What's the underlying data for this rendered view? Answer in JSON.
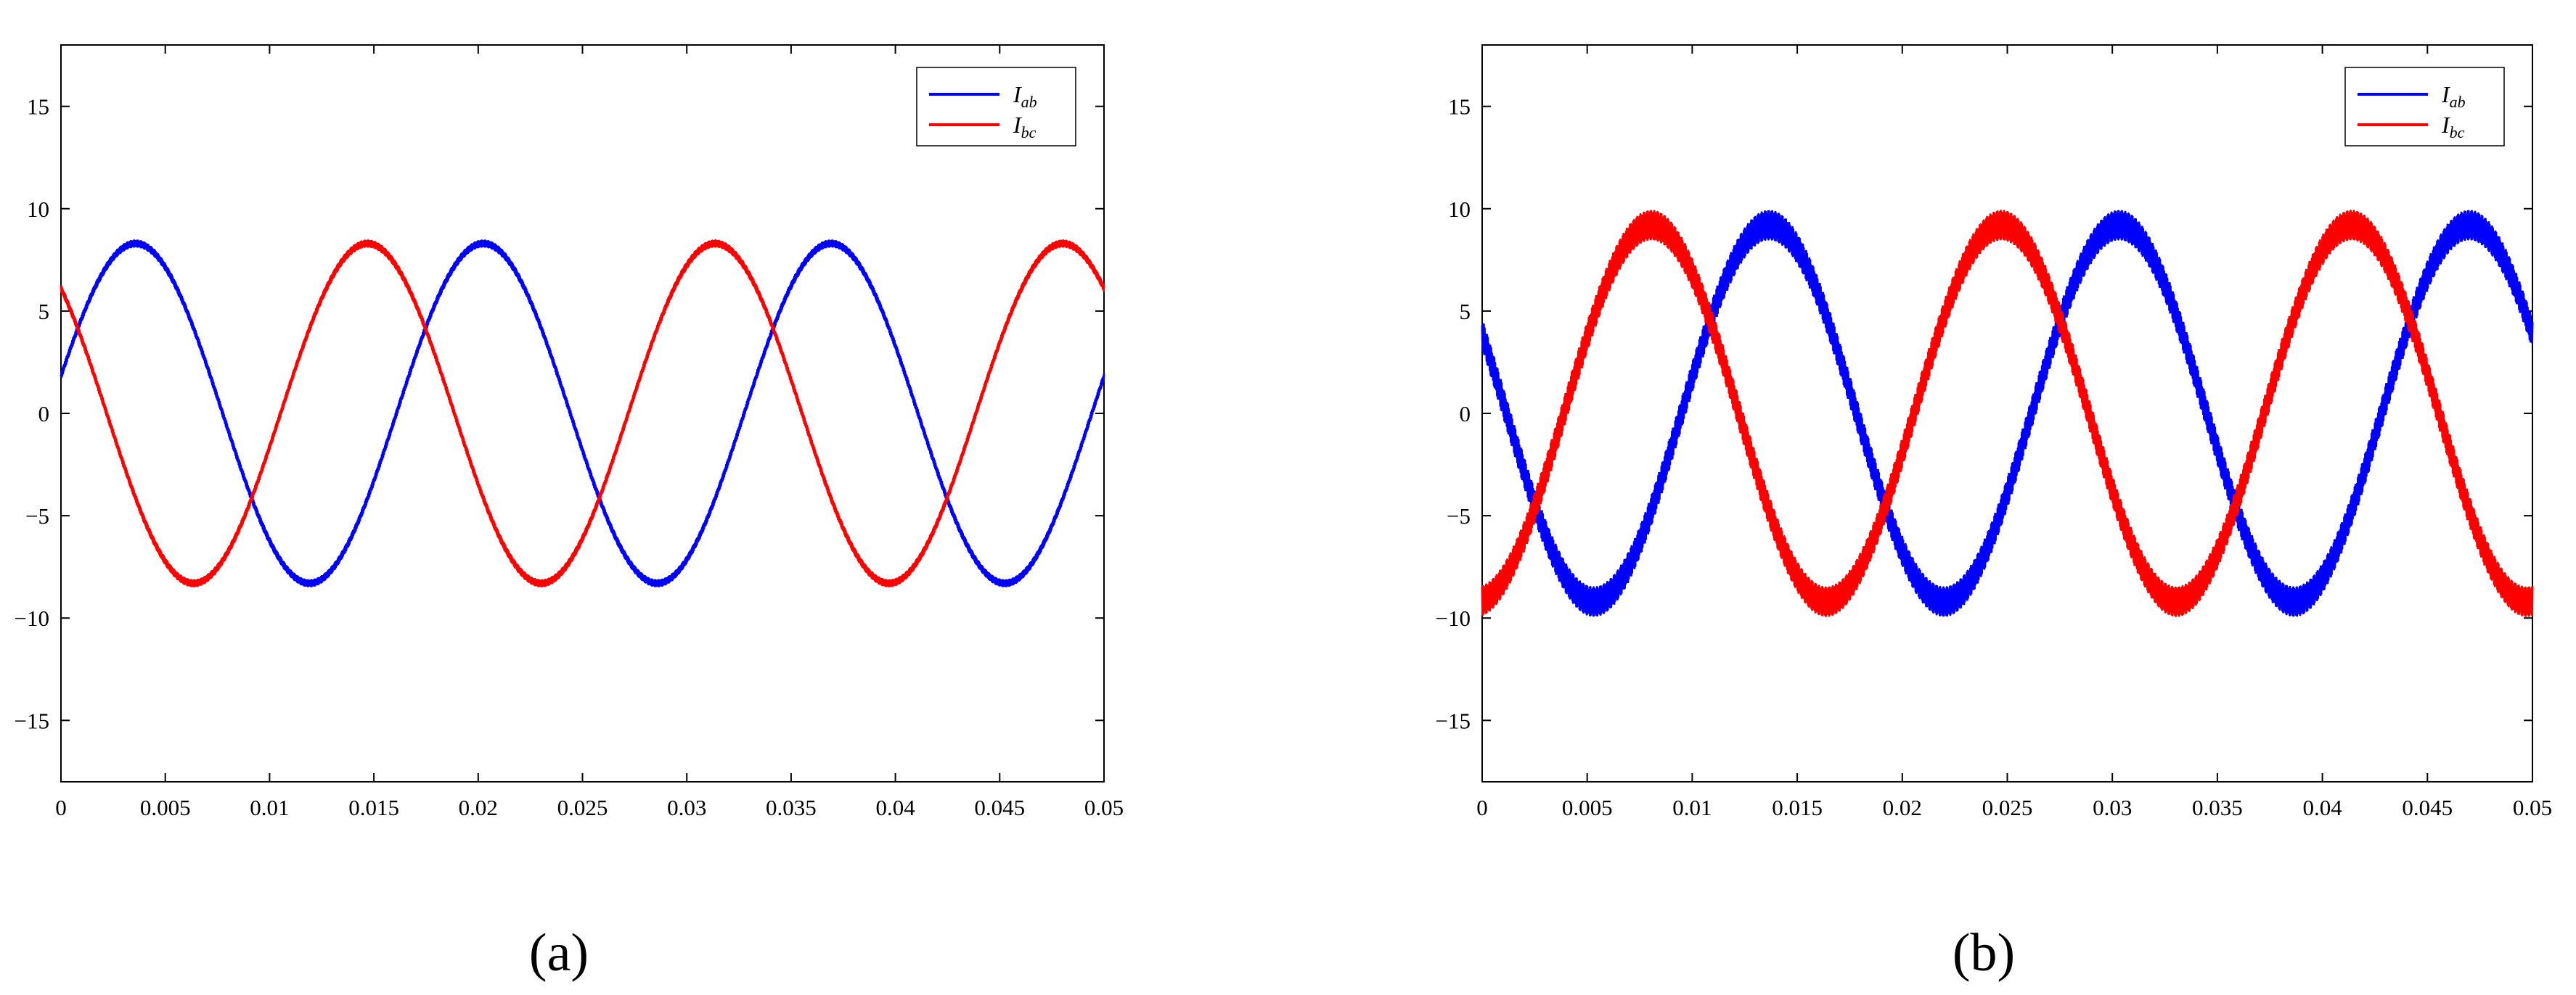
{
  "chart_data": [
    {
      "type": "line",
      "panel_label": "(a)",
      "xlim": [
        0,
        0.05
      ],
      "ylim": [
        -18,
        18
      ],
      "x_ticks": [
        "0",
        "0.005",
        "0.01",
        "0.015",
        "0.02",
        "0.025",
        "0.03",
        "0.035",
        "0.04",
        "0.045",
        "0.05"
      ],
      "y_ticks": [
        "15",
        "10",
        "5",
        "0",
        "−5",
        "−10",
        "−15"
      ],
      "grid": false,
      "legend_position": "top-right",
      "series": [
        {
          "name": "Iab",
          "label_main": "I",
          "label_sub": "ab",
          "color": "#0000ff",
          "amplitude": 8.3,
          "frequency_hz": 60,
          "phase_deg": 12.6,
          "ripple": 0.15
        },
        {
          "name": "Ibc",
          "label_main": "I",
          "label_sub": "bc",
          "color": "#ff0000",
          "amplitude": 8.3,
          "frequency_hz": 60,
          "phase_deg": 132.6,
          "ripple": 0.15
        }
      ]
    },
    {
      "type": "line",
      "panel_label": "(b)",
      "xlim": [
        0,
        0.05
      ],
      "ylim": [
        -18,
        18
      ],
      "x_ticks": [
        "0",
        "0.005",
        "0.01",
        "0.015",
        "0.02",
        "0.025",
        "0.03",
        "0.035",
        "0.04",
        "0.045",
        "0.05"
      ],
      "y_ticks": [
        "15",
        "10",
        "5",
        "0",
        "−5",
        "−10",
        "−15"
      ],
      "grid": false,
      "legend_position": "top-right",
      "series": [
        {
          "name": "Iab",
          "label_main": "I",
          "label_sub": "ab",
          "color": "#0000ff",
          "amplitude": 9.2,
          "frequency_hz": 60,
          "phase_deg": 155,
          "ripple": 0.7
        },
        {
          "name": "Ibc",
          "label_main": "I",
          "label_sub": "bc",
          "color": "#ff0000",
          "amplitude": 9.2,
          "frequency_hz": 60,
          "phase_deg": -84,
          "ripple": 0.7
        }
      ]
    }
  ]
}
